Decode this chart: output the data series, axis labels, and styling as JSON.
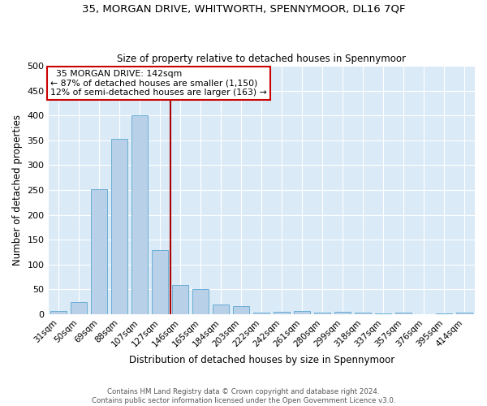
{
  "title": "35, MORGAN DRIVE, WHITWORTH, SPENNYMOOR, DL16 7QF",
  "subtitle": "Size of property relative to detached houses in Spennymoor",
  "xlabel": "Distribution of detached houses by size in Spennymoor",
  "ylabel": "Number of detached properties",
  "bar_labels": [
    "31sqm",
    "50sqm",
    "69sqm",
    "88sqm",
    "107sqm",
    "127sqm",
    "146sqm",
    "165sqm",
    "184sqm",
    "203sqm",
    "222sqm",
    "242sqm",
    "261sqm",
    "280sqm",
    "299sqm",
    "318sqm",
    "337sqm",
    "357sqm",
    "376sqm",
    "395sqm",
    "414sqm"
  ],
  "bar_values": [
    6,
    25,
    252,
    353,
    401,
    129,
    59,
    50,
    19,
    16,
    3,
    5,
    6,
    3,
    5,
    3,
    1,
    3,
    0,
    1,
    3
  ],
  "bar_color": "#b8d0e8",
  "bar_edgecolor": "#6baed6",
  "background_color": "#daeaf7",
  "property_line_label": "35 MORGAN DRIVE: 142sqm",
  "annotation_line1": "← 87% of detached houses are smaller (1,150)",
  "annotation_line2": "12% of semi-detached houses are larger (163) →",
  "annotation_box_color": "#ffffff",
  "annotation_box_edgecolor": "#cc0000",
  "vline_color": "#aa0000",
  "ylim": [
    0,
    500
  ],
  "yticks": [
    0,
    50,
    100,
    150,
    200,
    250,
    300,
    350,
    400,
    450,
    500
  ],
  "footnote1": "Contains HM Land Registry data © Crown copyright and database right 2024.",
  "footnote2": "Contains public sector information licensed under the Open Government Licence v3.0.",
  "figsize": [
    6.0,
    5.0
  ],
  "dpi": 100
}
